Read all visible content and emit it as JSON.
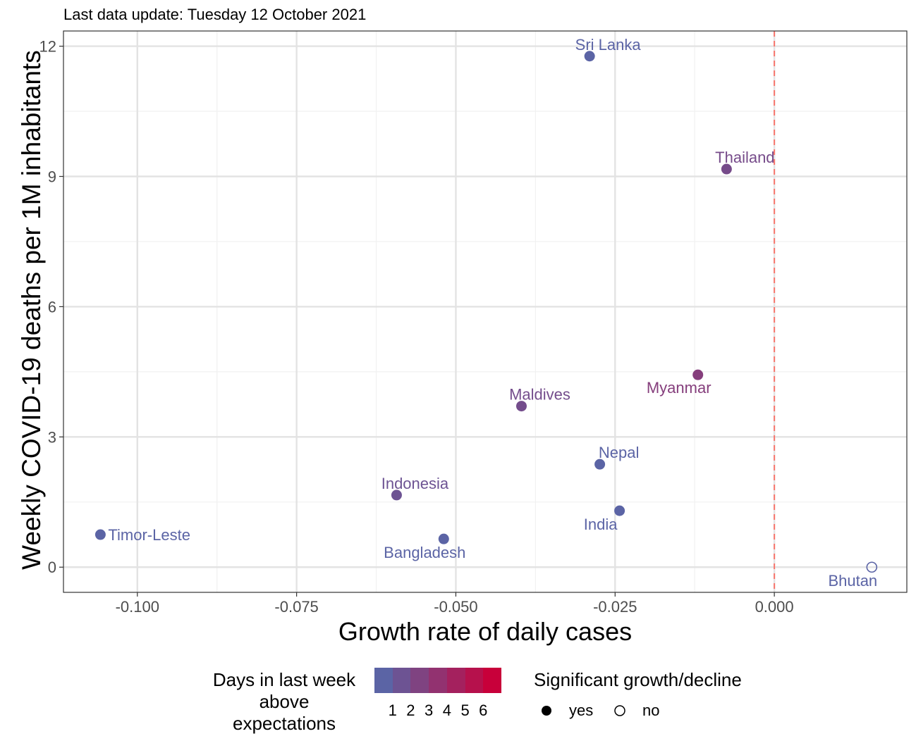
{
  "subtitle": "Last data update: Tuesday 12 October 2021",
  "colors": {
    "low": "#5B64A5",
    "high": "#C8003A",
    "reference_line": "#F8766D",
    "grid_major": "#E3E3E3",
    "grid_minor": "#F1F1F1",
    "label_text": "#555555"
  },
  "chart_data": {
    "type": "scatter",
    "xlabel": "Growth rate of daily cases",
    "ylabel": "Weekly COVID-19 deaths per 1M inhabitants",
    "xlim": [
      -0.1116,
      0.0208
    ],
    "ylim": [
      -0.58,
      12.35
    ],
    "x_ticks": [
      -0.1,
      -0.075,
      -0.05,
      -0.025,
      0.0
    ],
    "x_tick_labels": [
      "-0.100",
      "-0.075",
      "-0.050",
      "-0.025",
      "0.000"
    ],
    "y_ticks": [
      0,
      3,
      6,
      9,
      12
    ],
    "y_tick_labels": [
      "0",
      "3",
      "6",
      "9",
      "12"
    ],
    "grid": true,
    "reference_line": {
      "axis": "x",
      "value": 0.0,
      "style": "dashed"
    },
    "points": [
      {
        "label": "Sri Lanka",
        "x": -0.029,
        "y": 11.77,
        "days": 1,
        "significant": "yes",
        "label_side": "above"
      },
      {
        "label": "Thailand",
        "x": -0.0075,
        "y": 9.17,
        "days": 2.5,
        "significant": "yes",
        "label_side": "above"
      },
      {
        "label": "Myanmar",
        "x": -0.012,
        "y": 4.43,
        "days": 3.3,
        "significant": "yes",
        "label_side": "below-left"
      },
      {
        "label": "Maldives",
        "x": -0.0397,
        "y": 3.71,
        "days": 2.4,
        "significant": "yes",
        "label_side": "above"
      },
      {
        "label": "Nepal",
        "x": -0.0274,
        "y": 2.37,
        "days": 1,
        "significant": "yes",
        "label_side": "above-right"
      },
      {
        "label": "Indonesia",
        "x": -0.0593,
        "y": 1.66,
        "days": 2,
        "significant": "yes",
        "label_side": "above"
      },
      {
        "label": "India",
        "x": -0.0243,
        "y": 1.3,
        "days": 1,
        "significant": "yes",
        "label_side": "below-left"
      },
      {
        "label": "Timor-Leste",
        "x": -0.1058,
        "y": 0.75,
        "days": 1,
        "significant": "yes",
        "label_side": "right"
      },
      {
        "label": "Bangladesh",
        "x": -0.0519,
        "y": 0.65,
        "days": 1,
        "significant": "yes",
        "label_side": "below"
      },
      {
        "label": "Bhutan",
        "x": 0.0153,
        "y": 0.0,
        "days": 1,
        "significant": "no",
        "label_side": "below"
      }
    ],
    "legend_color": {
      "title": "Days in last week above expectations",
      "title_lines": [
        "Days in last week",
        "above",
        "expectations"
      ],
      "min": 0,
      "max": 7,
      "ticks": [
        1,
        2,
        3,
        4,
        5,
        6
      ],
      "tick_labels": [
        "1",
        "2",
        "3",
        "4",
        "5",
        "6"
      ]
    },
    "legend_shape": {
      "title": "Significant growth/decline",
      "items": [
        {
          "label": "yes",
          "shape": "filled-circle"
        },
        {
          "label": "no",
          "shape": "open-circle"
        }
      ]
    }
  }
}
